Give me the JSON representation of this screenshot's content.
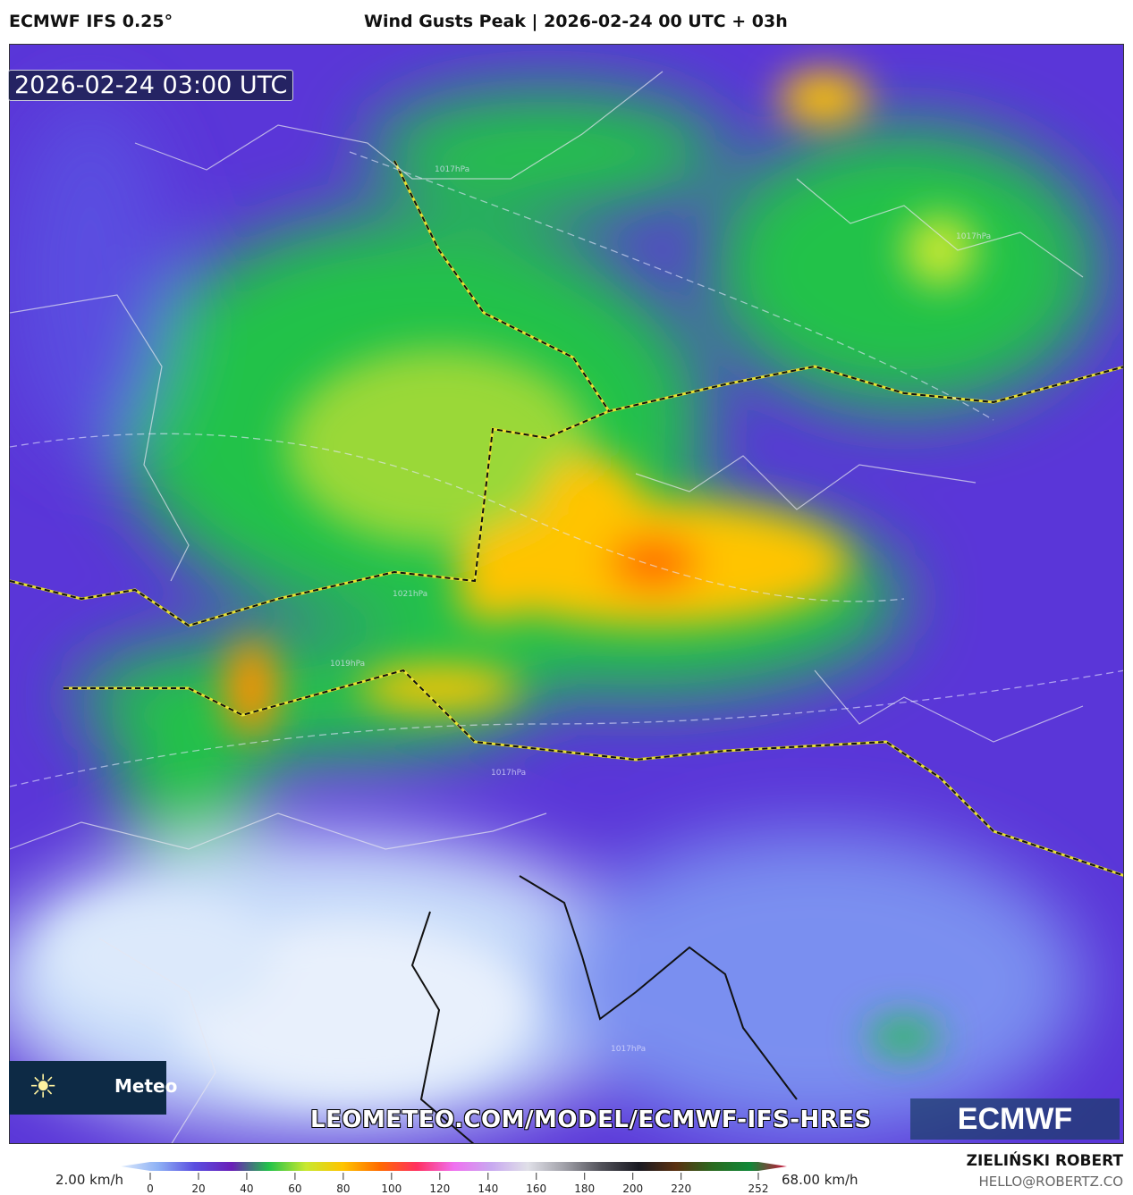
{
  "header": {
    "model": "ECMWF IFS 0.25°",
    "title": "Wind Gusts Peak | 2026-02-24 00 UTC + 03h"
  },
  "map": {
    "valid_time": "2026-02-24 03:00 UTC",
    "isobar_labels": [
      "1017hPa",
      "1021hPa",
      "1019hPa",
      "1017hPa",
      "1017hPa",
      "1017hPa"
    ],
    "url": "LEOMETEO.COM/MODEL/ECMWF-IFS-HRES",
    "leometeo_logo": "Meteo",
    "ecmwf_logo": "ECMWF"
  },
  "legend": {
    "min_label": "2.00 km/h",
    "max_label": "68.00 km/h",
    "ticks": [
      "0",
      "20",
      "40",
      "60",
      "80",
      "100",
      "120",
      "140",
      "160",
      "180",
      "200",
      "220",
      "252"
    ],
    "colors": [
      "#dce9fb",
      "#8fb2f5",
      "#5a4ee0",
      "#6a1fb8",
      "#22c24a",
      "#c8e830",
      "#ffc400",
      "#ff6a00",
      "#ff3060",
      "#f070f0",
      "#c8a8f0",
      "#e0e0e8",
      "#a0a0a8",
      "#505058",
      "#1a1a22",
      "#5a3010",
      "#2a6a20",
      "#108838",
      "#d0103a"
    ]
  },
  "credits": {
    "author": "ZIELIŃSKI ROBERT",
    "email": "HELLO@ROBERTZ.CO"
  }
}
